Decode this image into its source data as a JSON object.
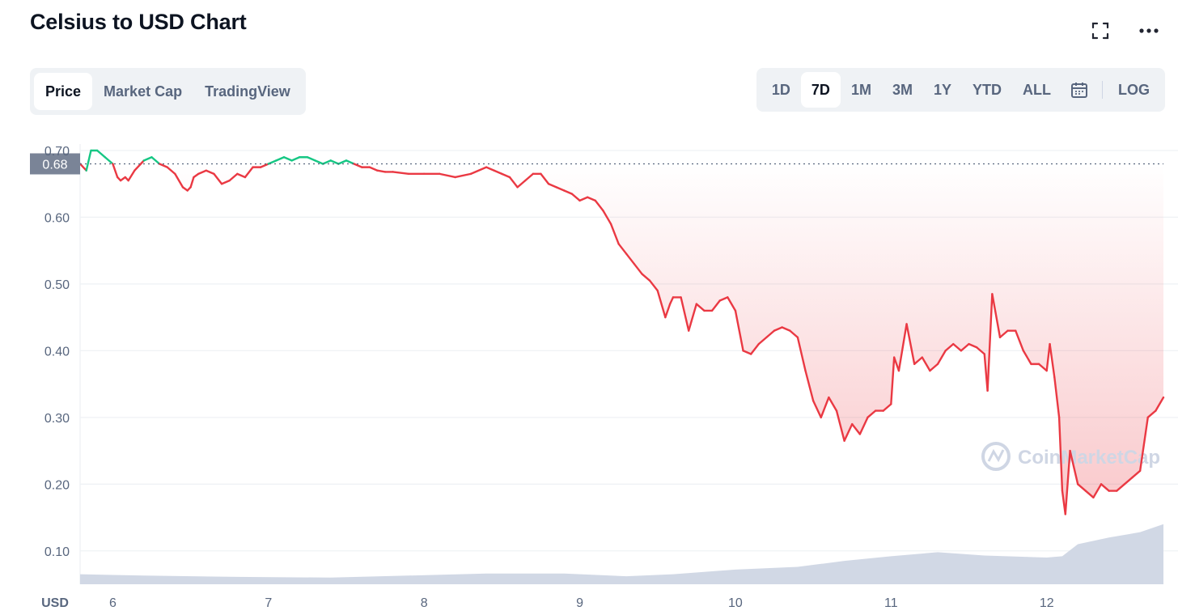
{
  "header": {
    "title": "Celsius to USD Chart",
    "icons": [
      "fullscreen-icon",
      "more-icon"
    ]
  },
  "tabs": [
    {
      "label": "Price",
      "active": true
    },
    {
      "label": "Market Cap",
      "active": false
    },
    {
      "label": "TradingView",
      "active": false
    }
  ],
  "ranges": {
    "items": [
      {
        "label": "1D",
        "active": false
      },
      {
        "label": "7D",
        "active": true
      },
      {
        "label": "1M",
        "active": false
      },
      {
        "label": "3M",
        "active": false
      },
      {
        "label": "1Y",
        "active": false
      },
      {
        "label": "YTD",
        "active": false
      },
      {
        "label": "ALL",
        "active": false
      }
    ],
    "calendar_icon": "calendar-icon",
    "log_label": "LOG"
  },
  "watermark": "CoinMarketCap",
  "colors": {
    "up": "#16c784",
    "down": "#ea3943",
    "volume": "#cfd6e4",
    "grid": "#eff2f5",
    "reference": "#58667e"
  },
  "chart_data": {
    "type": "line",
    "title": "Celsius to USD Chart",
    "xlabel": "",
    "ylabel": "USD",
    "ylim": [
      0.05,
      0.7
    ],
    "yticks": [
      "0.70",
      "0.60",
      "0.50",
      "0.40",
      "0.30",
      "0.20",
      "0.10"
    ],
    "xticks": [
      "6",
      "7",
      "8",
      "9",
      "10",
      "11",
      "12"
    ],
    "xlim": [
      5.79,
      12.75
    ],
    "reference_price": 0.68,
    "reference_label": "0.68",
    "grid": true,
    "price": {
      "x": [
        5.79,
        5.83,
        5.86,
        5.9,
        5.95,
        6.0,
        6.03,
        6.05,
        6.08,
        6.1,
        6.14,
        6.2,
        6.25,
        6.3,
        6.35,
        6.4,
        6.45,
        6.48,
        6.5,
        6.52,
        6.55,
        6.6,
        6.65,
        6.7,
        6.75,
        6.8,
        6.85,
        6.9,
        6.95,
        7.0,
        7.05,
        7.1,
        7.15,
        7.2,
        7.25,
        7.3,
        7.35,
        7.4,
        7.45,
        7.5,
        7.55,
        7.6,
        7.65,
        7.7,
        7.75,
        7.8,
        7.9,
        8.0,
        8.1,
        8.2,
        8.3,
        8.4,
        8.45,
        8.5,
        8.55,
        8.6,
        8.65,
        8.7,
        8.75,
        8.8,
        8.85,
        8.9,
        8.95,
        9.0,
        9.05,
        9.1,
        9.15,
        9.2,
        9.25,
        9.3,
        9.35,
        9.4,
        9.45,
        9.5,
        9.55,
        9.58,
        9.6,
        9.65,
        9.7,
        9.75,
        9.8,
        9.85,
        9.9,
        9.95,
        10.0,
        10.05,
        10.1,
        10.15,
        10.2,
        10.25,
        10.3,
        10.35,
        10.4,
        10.45,
        10.5,
        10.55,
        10.6,
        10.65,
        10.7,
        10.75,
        10.8,
        10.85,
        10.9,
        10.95,
        11.0,
        11.02,
        11.05,
        11.1,
        11.15,
        11.2,
        11.25,
        11.3,
        11.35,
        11.4,
        11.45,
        11.5,
        11.55,
        11.6,
        11.62,
        11.65,
        11.7,
        11.75,
        11.8,
        11.85,
        11.9,
        11.95,
        12.0,
        12.02,
        12.05,
        12.08,
        12.1,
        12.12,
        12.15,
        12.2,
        12.25,
        12.3,
        12.35,
        12.4,
        12.45,
        12.5,
        12.55,
        12.6,
        12.65,
        12.7,
        12.75
      ],
      "y": [
        0.68,
        0.67,
        0.7,
        0.7,
        0.69,
        0.68,
        0.66,
        0.655,
        0.66,
        0.655,
        0.67,
        0.685,
        0.69,
        0.68,
        0.675,
        0.665,
        0.645,
        0.64,
        0.645,
        0.66,
        0.665,
        0.67,
        0.665,
        0.65,
        0.655,
        0.665,
        0.66,
        0.675,
        0.675,
        0.68,
        0.685,
        0.69,
        0.685,
        0.69,
        0.69,
        0.685,
        0.68,
        0.685,
        0.68,
        0.685,
        0.68,
        0.675,
        0.675,
        0.67,
        0.668,
        0.668,
        0.665,
        0.665,
        0.665,
        0.66,
        0.665,
        0.675,
        0.67,
        0.665,
        0.66,
        0.645,
        0.655,
        0.665,
        0.665,
        0.65,
        0.645,
        0.64,
        0.635,
        0.625,
        0.63,
        0.625,
        0.61,
        0.59,
        0.56,
        0.545,
        0.53,
        0.515,
        0.505,
        0.49,
        0.45,
        0.47,
        0.48,
        0.48,
        0.43,
        0.47,
        0.46,
        0.46,
        0.475,
        0.48,
        0.46,
        0.4,
        0.395,
        0.41,
        0.42,
        0.43,
        0.435,
        0.43,
        0.42,
        0.37,
        0.325,
        0.3,
        0.33,
        0.31,
        0.265,
        0.29,
        0.275,
        0.3,
        0.31,
        0.31,
        0.32,
        0.39,
        0.37,
        0.44,
        0.38,
        0.39,
        0.37,
        0.38,
        0.4,
        0.41,
        0.4,
        0.41,
        0.405,
        0.395,
        0.34,
        0.485,
        0.42,
        0.43,
        0.43,
        0.4,
        0.38,
        0.38,
        0.37,
        0.41,
        0.36,
        0.3,
        0.19,
        0.155,
        0.25,
        0.2,
        0.19,
        0.18,
        0.2,
        0.19,
        0.19,
        0.2,
        0.21,
        0.22,
        0.3,
        0.31,
        0.33
      ]
    },
    "volume": {
      "x": [
        5.79,
        6.2,
        6.8,
        7.4,
        7.9,
        8.4,
        8.9,
        9.3,
        9.6,
        10.0,
        10.4,
        10.7,
        11.0,
        11.3,
        11.6,
        12.0,
        12.1,
        12.2,
        12.4,
        12.6,
        12.75
      ],
      "y": [
        0.065,
        0.063,
        0.061,
        0.06,
        0.063,
        0.066,
        0.066,
        0.062,
        0.065,
        0.072,
        0.076,
        0.085,
        0.092,
        0.098,
        0.093,
        0.09,
        0.092,
        0.11,
        0.12,
        0.128,
        0.14
      ]
    }
  }
}
